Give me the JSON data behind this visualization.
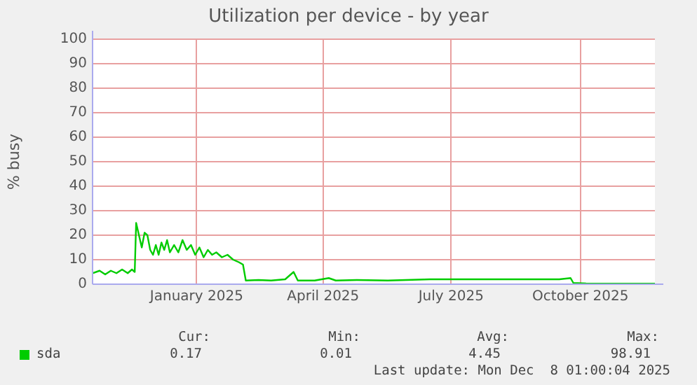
{
  "chart_data": {
    "type": "line",
    "title": "Utilization per device - by year",
    "ylabel": "% busy",
    "x": [
      "2024-11-03",
      "2024-11-08",
      "2024-11-12",
      "2024-11-16",
      "2024-11-20",
      "2024-11-24",
      "2024-11-28",
      "2024-12-01",
      "2024-12-03",
      "2024-12-04",
      "2024-12-06",
      "2024-12-08",
      "2024-12-10",
      "2024-12-12",
      "2024-12-14",
      "2024-12-16",
      "2024-12-18",
      "2024-12-20",
      "2024-12-22",
      "2024-12-24",
      "2024-12-26",
      "2024-12-28",
      "2024-12-31",
      "2025-01-03",
      "2025-01-06",
      "2025-01-09",
      "2025-01-12",
      "2025-01-15",
      "2025-01-18",
      "2025-01-21",
      "2025-01-24",
      "2025-01-27",
      "2025-01-30",
      "2025-02-03",
      "2025-02-07",
      "2025-02-11",
      "2025-02-15",
      "2025-02-18",
      "2025-02-20",
      "2025-03-01",
      "2025-03-10",
      "2025-03-20",
      "2025-03-26",
      "2025-03-29",
      "2025-04-10",
      "2025-04-20",
      "2025-04-25",
      "2025-05-10",
      "2025-06-01",
      "2025-07-01",
      "2025-08-01",
      "2025-09-01",
      "2025-10-01",
      "2025-10-09",
      "2025-10-11",
      "2025-10-20",
      "2025-11-01",
      "2025-12-08"
    ],
    "series": [
      {
        "name": "sda",
        "color": "#00cc00",
        "values": [
          4.5,
          5.5,
          4,
          5.5,
          4.5,
          6,
          4.5,
          6,
          5,
          25,
          20,
          15,
          21,
          20,
          14,
          12,
          16,
          12,
          17,
          14,
          18,
          13,
          16,
          13,
          18,
          14,
          16,
          12,
          15,
          11,
          14,
          12,
          13,
          11,
          12,
          10,
          9,
          8,
          1.5,
          1.7,
          1.5,
          2,
          5,
          1.5,
          1.5,
          2.5,
          1.5,
          1.7,
          1.5,
          2,
          2,
          2,
          2,
          2.5,
          0.5,
          0.3,
          0.2,
          0.2
        ]
      }
    ],
    "xlim": [
      "2024-11-03",
      "2025-12-08"
    ],
    "xticks": [
      {
        "value": "2025-01-16",
        "label": "January 2025"
      },
      {
        "value": "2025-04-16",
        "label": "April 2025"
      },
      {
        "value": "2025-07-16",
        "label": "July 2025"
      },
      {
        "value": "2025-10-16",
        "label": "October 2025"
      }
    ],
    "ylim": [
      0,
      100
    ],
    "yticks": [
      0,
      10,
      20,
      30,
      40,
      50,
      60,
      70,
      80,
      90,
      100
    ],
    "grid": true,
    "legend": "bottom left",
    "marker": "none",
    "line_style": "solid",
    "annotations": [
      "Cur:",
      "Min:",
      "Avg:",
      "Max:",
      "0.17",
      "0.01",
      "4.45",
      "98.91",
      "Last update: Mon Dec  8 01:00:04 2025"
    ]
  }
}
